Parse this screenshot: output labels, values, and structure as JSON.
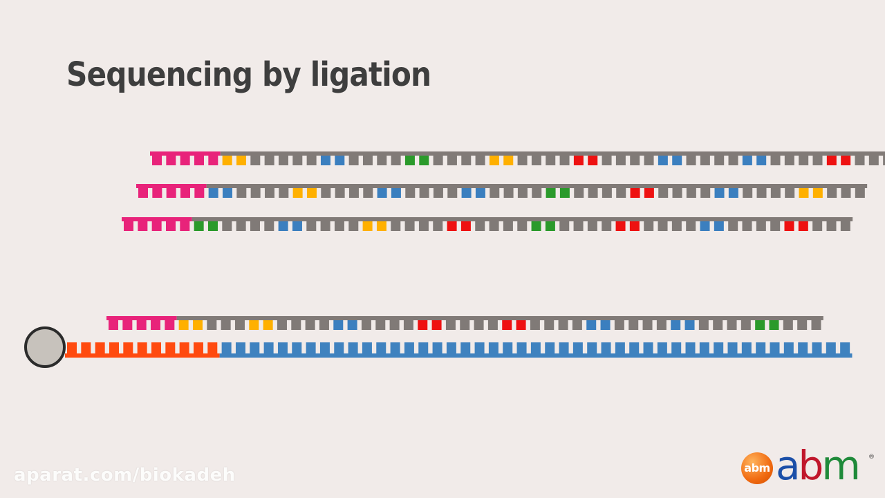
{
  "title": "Sequencing by ligation",
  "watermark": "aparat.com/biokadeh",
  "logo": {
    "badge_text": "abm",
    "letters": [
      "a",
      "b",
      "m"
    ],
    "registered": "®"
  },
  "colors": {
    "background": "#f1ebe9",
    "primer": "#e8237a",
    "backbone": "#817a77",
    "adapter": "#ff4a0f",
    "template": "#3f82bf",
    "bead_fill": "#c7c2bc",
    "bead_stroke": "#2b2b2b",
    "base_colors": {
      "y": "#ffb000",
      "b": "#3b7fbf",
      "g": "#2b9a2b",
      "r": "#ee1111",
      "n": "#807a77"
    }
  },
  "diagram": {
    "primer_units": 5,
    "probe_rows": [
      {
        "label": "probe-set-1",
        "pattern": "yynnnnnbbnnnnggnnnnyynnnnrrnnnnbbnnnnbbnnnnrrnnn"
      },
      {
        "label": "probe-set-2",
        "pattern": "bbnnnnyynnnnbbnnnnbbnnnnggnnnnrrnnnnbbnnnnyynnn"
      },
      {
        "label": "probe-set-3",
        "pattern": "ggnnnnbbnnnnyynnnnrrnnnnggnnnnrrnnnnbbnnnnrrnnn"
      }
    ],
    "ligated_probe": {
      "pattern": "yynnnyynnnnbbnnnnrrnnnnrrnnnnbbnnnnbbnnnnggnnn"
    },
    "adapter_units": 11,
    "template_units": 45
  }
}
